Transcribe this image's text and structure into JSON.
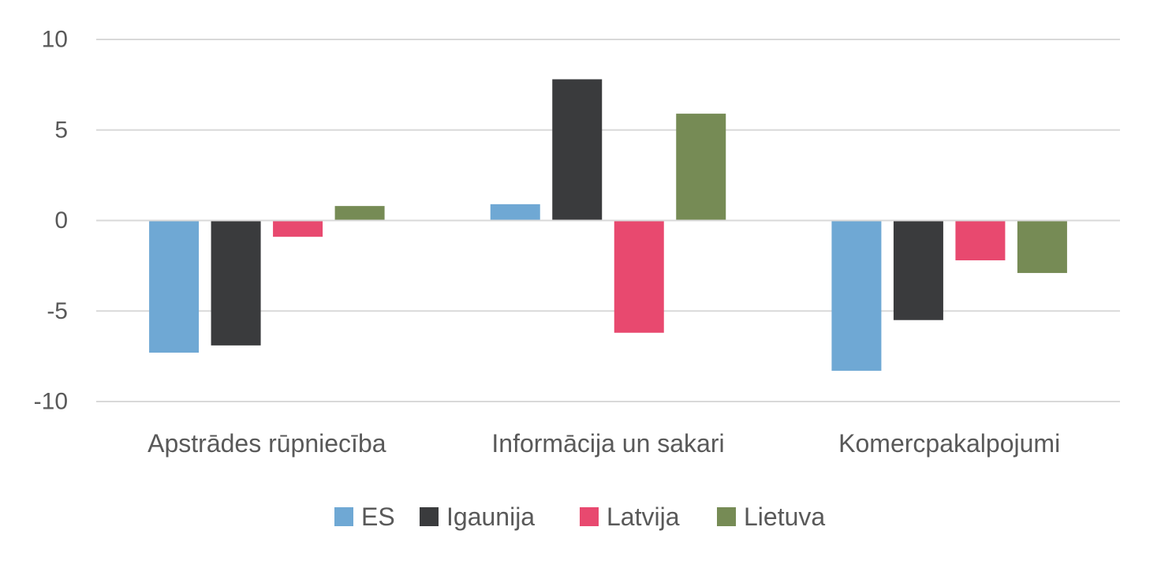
{
  "chart_data": {
    "type": "bar",
    "title": "",
    "xlabel": "",
    "ylabel": "",
    "categories": [
      "Apstrādes rūpniecība",
      "Informācija un sakari",
      "Komercpakalpojumi"
    ],
    "series": [
      {
        "name": "ES",
        "color": "#6fa8d4",
        "values": [
          -7.3,
          0.9,
          -8.3
        ]
      },
      {
        "name": "Igaunija",
        "color": "#3a3b3d",
        "values": [
          -6.9,
          7.8,
          -5.5
        ]
      },
      {
        "name": "Latvija",
        "color": "#e8496f",
        "values": [
          -0.9,
          -6.2,
          -2.2
        ]
      },
      {
        "name": "Lietuva",
        "color": "#768b55",
        "values": [
          0.8,
          5.9,
          -2.9
        ]
      }
    ],
    "ylim": [
      -10,
      10
    ],
    "yticks": [
      10,
      5,
      0,
      -5,
      -10
    ],
    "ytick_labels": [
      "10",
      "5",
      "0",
      "-5",
      "-10"
    ],
    "grid": true,
    "legend_position": "bottom"
  }
}
